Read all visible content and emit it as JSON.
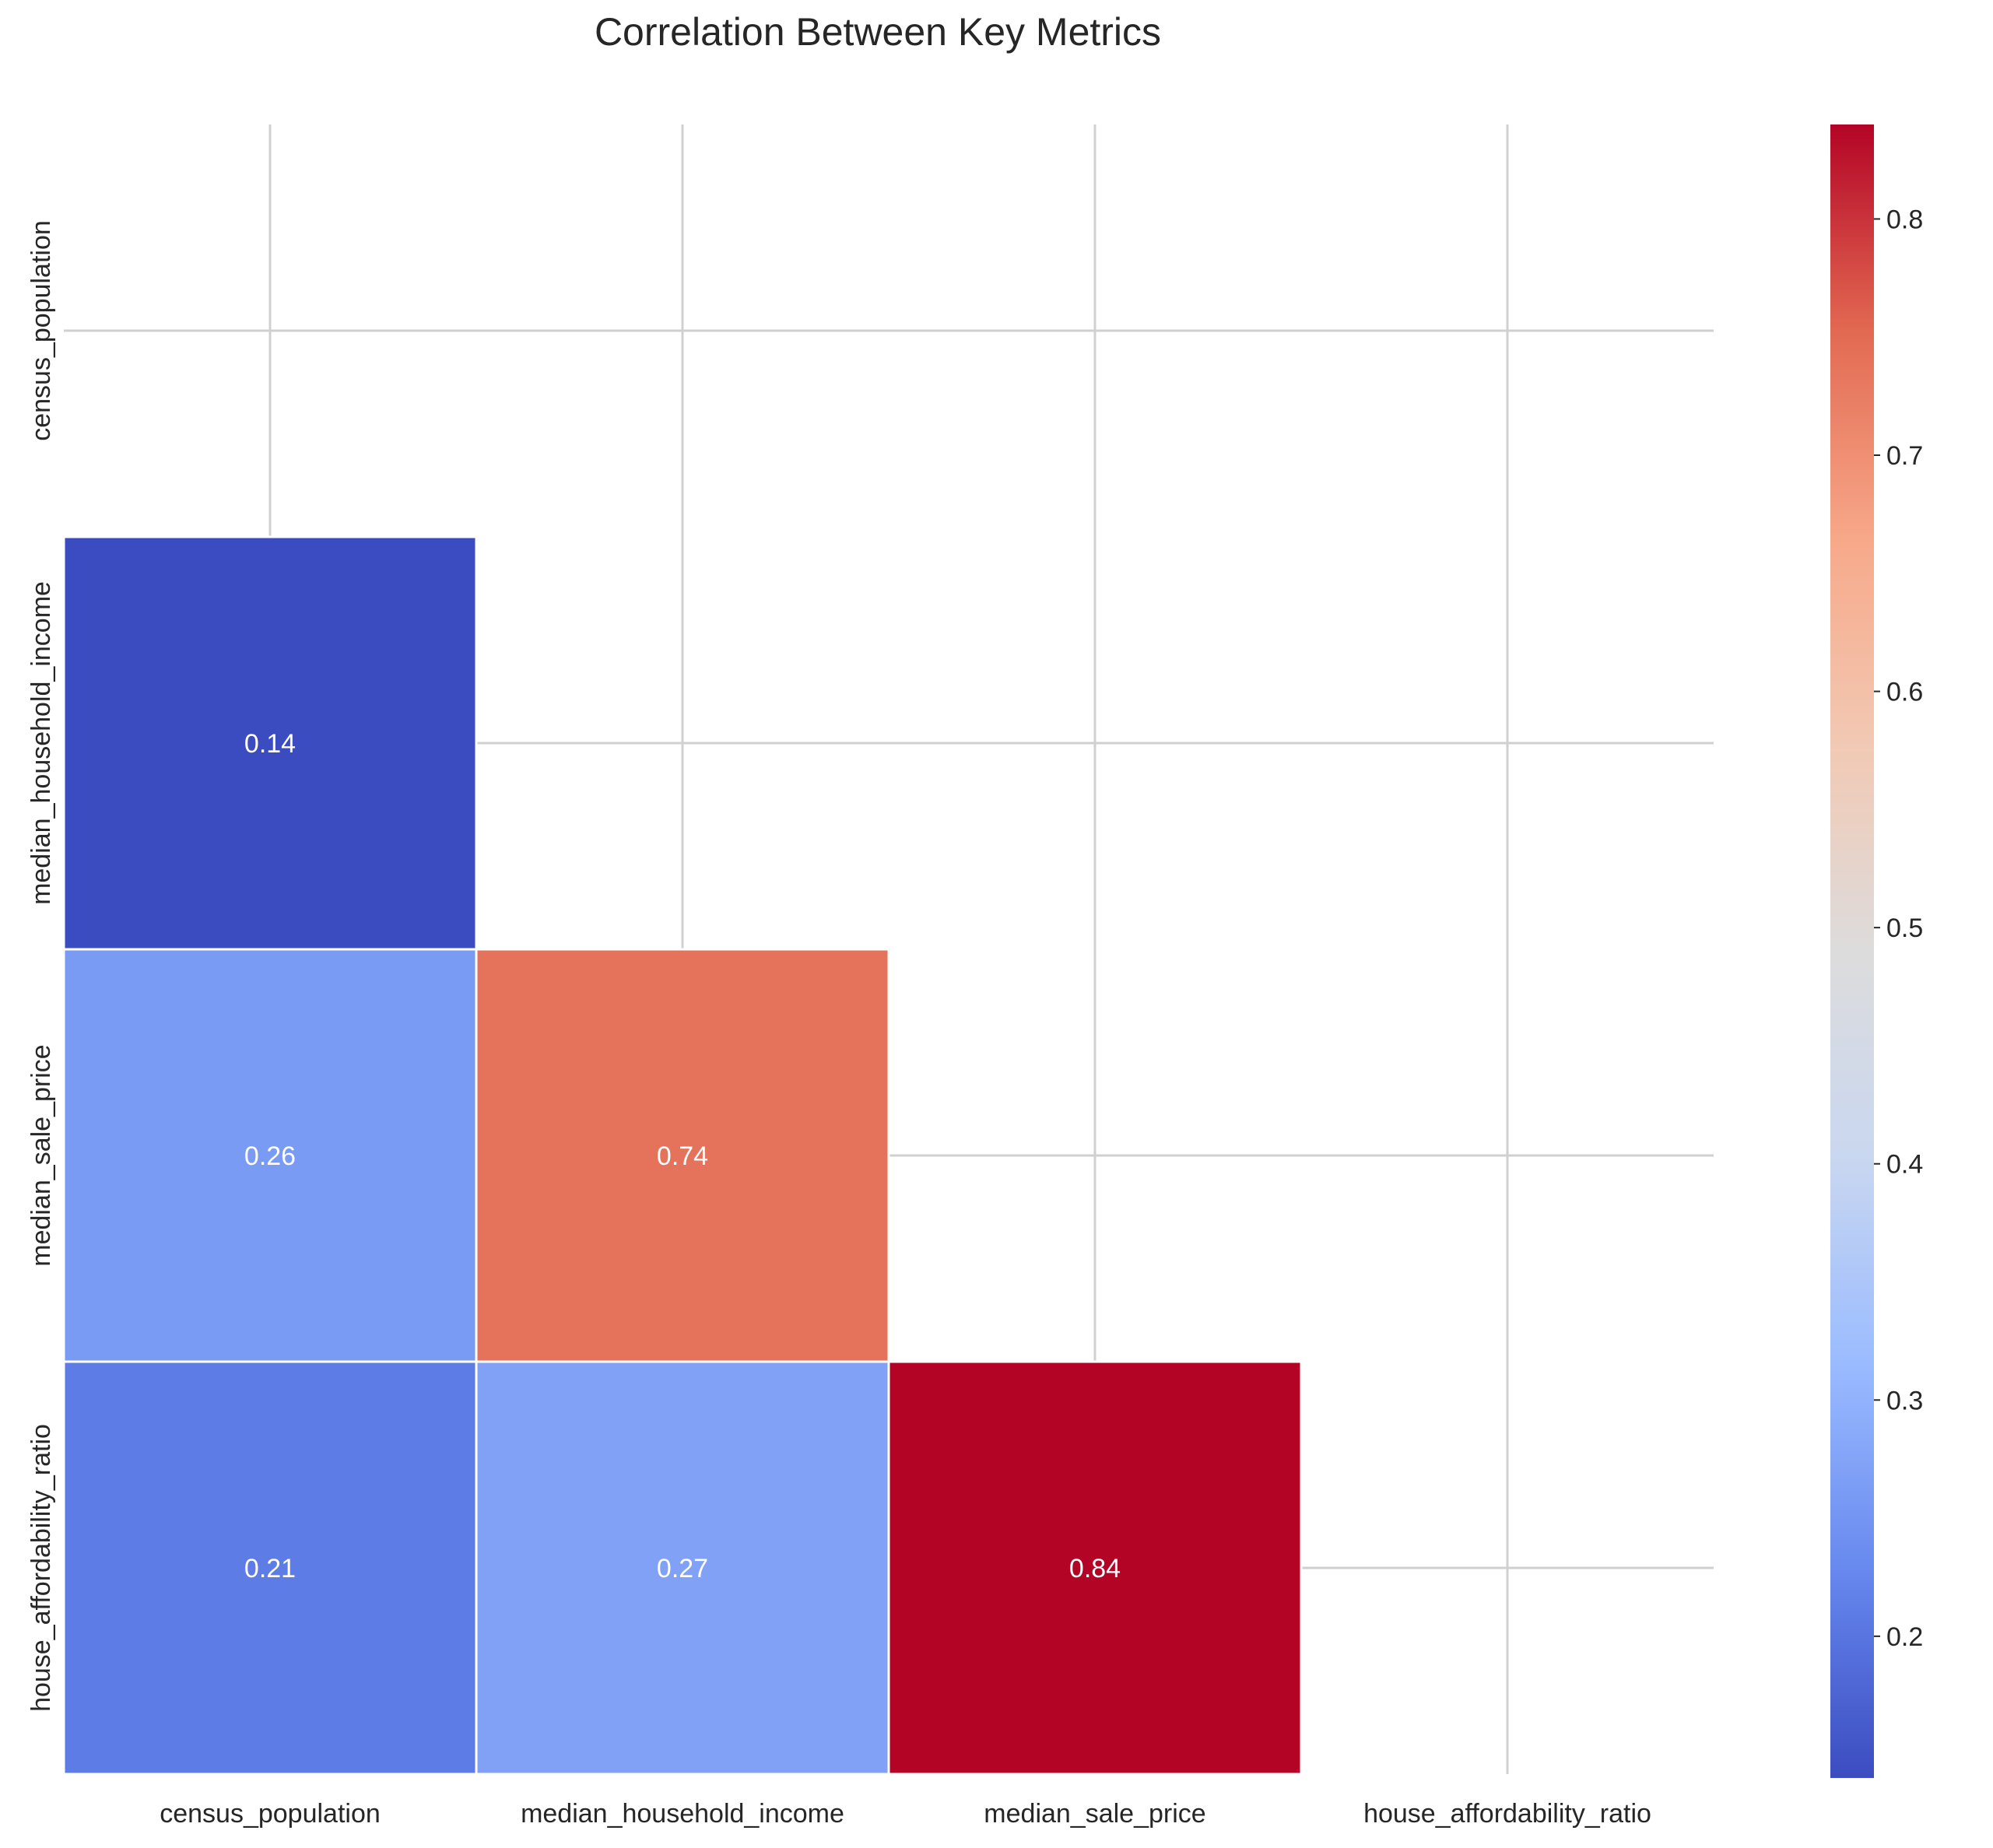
{
  "chart_data": {
    "type": "heatmap",
    "title": "Correlation Between Key Metrics",
    "xlabel": "",
    "ylabel": "",
    "categories": [
      "census_population",
      "median_household_income",
      "median_sale_price",
      "house_affordability_ratio"
    ],
    "mask": "upper-triangle-including-diagonal",
    "cells": [
      {
        "row": "median_household_income",
        "col": "census_population",
        "value": 0.14,
        "label": "0.14"
      },
      {
        "row": "median_sale_price",
        "col": "census_population",
        "value": 0.26,
        "label": "0.26"
      },
      {
        "row": "median_sale_price",
        "col": "median_household_income",
        "value": 0.74,
        "label": "0.74"
      },
      {
        "row": "house_affordability_ratio",
        "col": "census_population",
        "value": 0.21,
        "label": "0.21"
      },
      {
        "row": "house_affordability_ratio",
        "col": "median_household_income",
        "value": 0.27,
        "label": "0.27"
      },
      {
        "row": "house_affordability_ratio",
        "col": "median_sale_price",
        "value": 0.84,
        "label": "0.84"
      }
    ],
    "colormap": "coolwarm",
    "colorbar": {
      "min": 0.14,
      "max": 0.84,
      "ticks": [
        0.2,
        0.3,
        0.4,
        0.5,
        0.6,
        0.7,
        0.8
      ],
      "tick_labels": [
        "0.2",
        "0.3",
        "0.4",
        "0.5",
        "0.6",
        "0.7",
        "0.8"
      ],
      "placement": "right"
    },
    "grid": true
  },
  "colors": {
    "background": "#ffffff",
    "grid": "#d0d0d0",
    "text": "#262626",
    "cell_text": "#ffffff",
    "cell_border": "#ffffff",
    "colormap_stops": [
      "#3b4cc0",
      "#6788ee",
      "#9abbff",
      "#c9d7f0",
      "#dddcdc",
      "#f2c9b4",
      "#f7a889",
      "#e26952",
      "#b40426"
    ]
  }
}
